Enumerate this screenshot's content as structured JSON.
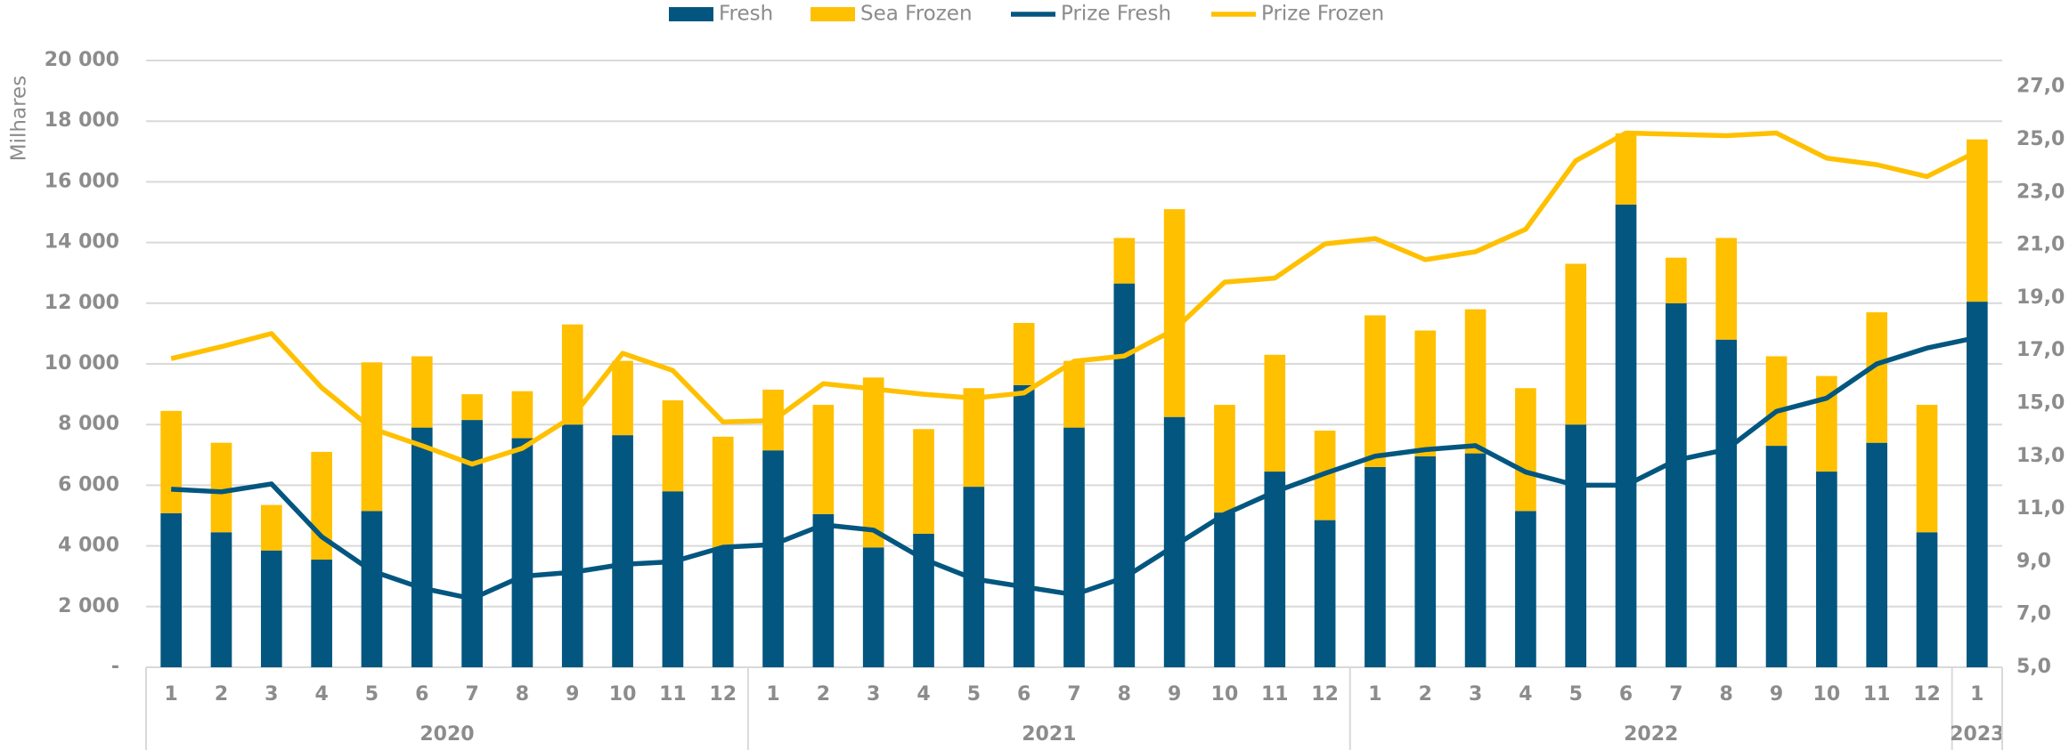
{
  "chart_data": {
    "type": "bar",
    "y_axis_label": "Milhares",
    "groups": [
      {
        "label": "2020",
        "categories": [
          "1",
          "2",
          "3",
          "4",
          "5",
          "6",
          "7",
          "8",
          "9",
          "10",
          "11",
          "12"
        ]
      },
      {
        "label": "2021",
        "categories": [
          "1",
          "2",
          "3",
          "4",
          "5",
          "6",
          "7",
          "8",
          "9",
          "10",
          "11",
          "12"
        ]
      },
      {
        "label": "2022",
        "categories": [
          "1",
          "2",
          "3",
          "4",
          "5",
          "6",
          "7",
          "8",
          "9",
          "10",
          "11",
          "12"
        ]
      },
      {
        "label": "2023",
        "categories": [
          "1"
        ]
      }
    ],
    "series": [
      {
        "name": "Fresh",
        "type": "bar",
        "stack": true,
        "color": "#02567f",
        "values": [
          5080,
          4450,
          3850,
          3550,
          5150,
          7900,
          8150,
          7550,
          8000,
          7650,
          5800,
          3900,
          7150,
          5050,
          3950,
          4400,
          5950,
          9300,
          7900,
          12650,
          8250,
          5100,
          6450,
          4850,
          6600,
          6950,
          7050,
          5150,
          8000,
          15250,
          12000,
          10800,
          7300,
          6450,
          7400,
          4450,
          12050
        ]
      },
      {
        "name": "Sea Frozen",
        "type": "bar",
        "stack": true,
        "color": "#ffc000",
        "values": [
          3370,
          2950,
          1500,
          3550,
          4900,
          2350,
          850,
          1550,
          3300,
          2450,
          3000,
          3700,
          2000,
          3600,
          5600,
          3450,
          3250,
          2050,
          2200,
          1500,
          6850,
          3550,
          3850,
          2950,
          5000,
          4150,
          4750,
          4050,
          5300,
          2350,
          1500,
          3350,
          2950,
          3150,
          4300,
          4200,
          5350
        ]
      },
      {
        "name": "Prize Fresh",
        "type": "line",
        "axis": "y2",
        "color": "#02567f",
        "values": [
          11.75,
          11.65,
          11.95,
          9.95,
          8.65,
          8.0,
          7.6,
          8.45,
          8.6,
          8.9,
          9.0,
          9.55,
          9.65,
          10.4,
          10.2,
          9.1,
          8.35,
          8.05,
          7.75,
          8.4,
          9.6,
          10.8,
          11.65,
          12.35,
          13.0,
          13.25,
          13.4,
          12.4,
          11.9,
          11.9,
          12.85,
          13.25,
          14.7,
          15.2,
          16.5,
          17.1,
          17.5
        ]
      },
      {
        "name": "Prize Frozen",
        "type": "line",
        "axis": "y2",
        "color": "#ffc000",
        "values": [
          16.7,
          17.15,
          17.65,
          15.6,
          14.05,
          13.4,
          12.7,
          13.3,
          14.5,
          16.9,
          16.25,
          14.3,
          14.35,
          15.75,
          15.55,
          15.35,
          15.2,
          15.4,
          16.6,
          16.8,
          17.8,
          19.6,
          19.75,
          21.05,
          21.25,
          20.45,
          20.75,
          21.6,
          24.2,
          25.25,
          25.2,
          25.15,
          25.25,
          24.3,
          24.05,
          23.6,
          24.55
        ]
      }
    ],
    "ylim": [
      0,
      20000
    ],
    "yticks": [
      {
        "value": 0,
        "label": "-"
      },
      {
        "value": 2000,
        "label": "2 000"
      },
      {
        "value": 4000,
        "label": "4 000"
      },
      {
        "value": 6000,
        "label": "6 000"
      },
      {
        "value": 8000,
        "label": "8 000"
      },
      {
        "value": 10000,
        "label": "10 000"
      },
      {
        "value": 12000,
        "label": "12 000"
      },
      {
        "value": 14000,
        "label": "14 000"
      },
      {
        "value": 16000,
        "label": "16 000"
      },
      {
        "value": 18000,
        "label": "18 000"
      },
      {
        "value": 20000,
        "label": "20 000"
      }
    ],
    "y2lim": [
      5,
      28
    ],
    "y2ticks": [
      {
        "value": 5,
        "label": "5,0"
      },
      {
        "value": 7,
        "label": "7,0"
      },
      {
        "value": 9,
        "label": "9,0"
      },
      {
        "value": 11,
        "label": "11,0"
      },
      {
        "value": 13,
        "label": "13,0"
      },
      {
        "value": 15,
        "label": "15,0"
      },
      {
        "value": 17,
        "label": "17,0"
      },
      {
        "value": 19,
        "label": "19,0"
      },
      {
        "value": 21,
        "label": "21,0"
      },
      {
        "value": 23,
        "label": "23,0"
      },
      {
        "value": 25,
        "label": "25,0"
      },
      {
        "value": 27,
        "label": "27,0"
      }
    ],
    "grid": true,
    "legend": "top"
  }
}
